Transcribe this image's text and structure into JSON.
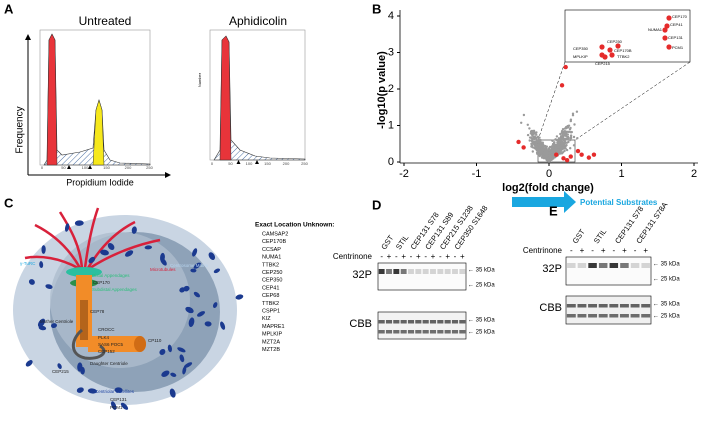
{
  "figure": {
    "A": {
      "label": "A",
      "untreated": "Untreated",
      "aphidicolin": "Aphidicolin",
      "y_label": "Frequency",
      "x_label": "Propidium Iodide",
      "right_y_label": "Number",
      "x_ticks": [
        "0",
        "50",
        "100",
        "150",
        "200",
        "250"
      ]
    },
    "B": {
      "label": "B",
      "y_label": "-log10(p value)",
      "x_label": "log2(fold change)",
      "x_ticks": [
        "-2",
        "-1",
        "0",
        "1",
        "2"
      ],
      "y_ticks": [
        "0",
        "1",
        "2",
        "3",
        "4"
      ],
      "inset_labels": [
        "CEP170",
        "CEP41",
        "NUMA1",
        "CEP131",
        "PCM1",
        "CEP250",
        "CEP350",
        "CEP170B",
        "MPLKIP",
        "TTBK2",
        "CEP215"
      ],
      "arrow_label": "Potential Substrates"
    },
    "C": {
      "label": "C",
      "unknown_title": "Exact Location Unknown:",
      "unknown_list": [
        "CAMSAP2",
        "CEP170B",
        "CCSAP",
        "NUMA1",
        "TTBK2",
        "CEP250",
        "CEP350",
        "CEP41",
        "CEP68",
        "TTBK2",
        "CSPP1",
        "KIZ",
        "MAPRE1",
        "MPLKIP",
        "MZT2A",
        "MZT2B"
      ],
      "diagram_labels": [
        "Microtubules",
        "γ-TuRC",
        "Centrosome Matrix",
        "Distal Appendages",
        "CEP170",
        "Subdistal Appendages",
        "Mother Centriole",
        "CEP78",
        "CROCC",
        "PLK4",
        "SAS6  POC5",
        "CEP152",
        "CP110",
        "CEP215",
        "Daughter Centriole",
        "Centriolar Satellites",
        "CEP131",
        "PCM1"
      ]
    },
    "D": {
      "label": "D",
      "lanes": [
        "GST",
        "STIL",
        "CEP131 S78",
        "CEP131 S89",
        "CEP215 S1238",
        "CEP350 S1648"
      ],
      "treatment": "Centrinone",
      "signs": [
        "-",
        "+"
      ],
      "rows": [
        "32P",
        "CBB"
      ],
      "markers": [
        "← 35 kDa",
        "← 25 kDa"
      ]
    },
    "E": {
      "label": "E",
      "lanes": [
        "GST",
        "STIL",
        "CEP131 S78",
        "CEP131 S78A"
      ],
      "treatment": "Centrinone",
      "signs": [
        "-",
        "+"
      ],
      "rows": [
        "32P",
        "CBB"
      ],
      "markers": [
        "← 35 kDa",
        "← 25 kDa"
      ]
    }
  }
}
